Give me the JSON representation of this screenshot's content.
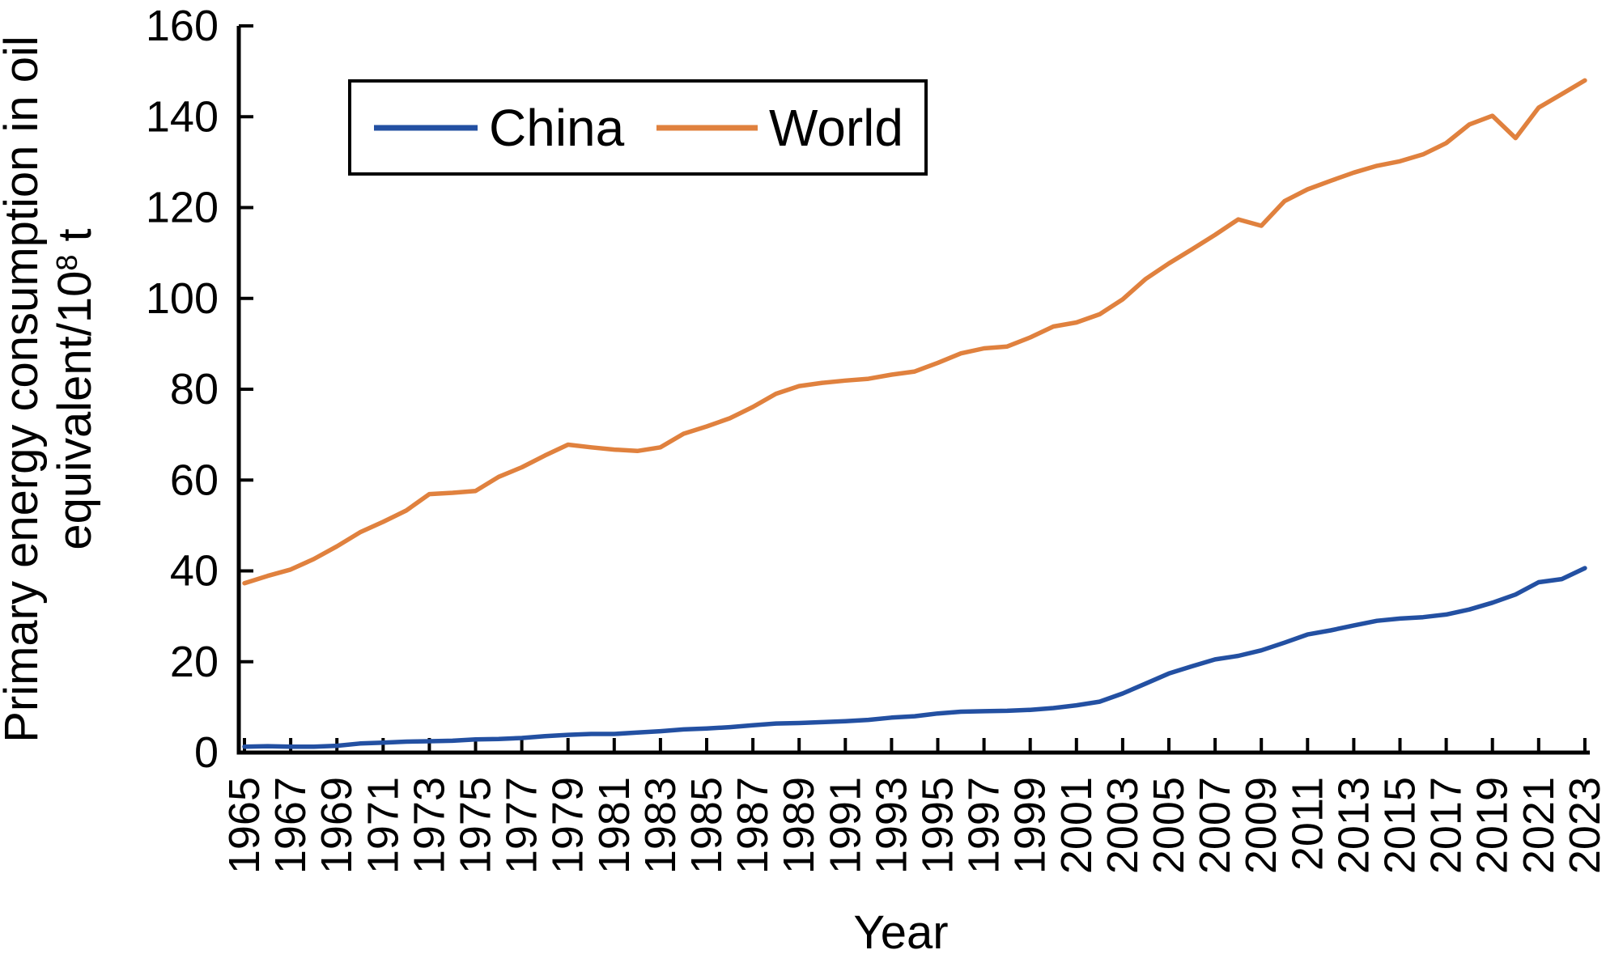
{
  "figure": {
    "background": "#ffffff",
    "text_color": "#000000"
  },
  "chart_data": {
    "type": "line",
    "title": "",
    "xlabel": "Year",
    "ylabel_plain": "Primary energy consumption in oil equivalent/10⁸ t",
    "ylabel": {
      "line1": "Primary energy consumption in oil",
      "line2_prefix": "equivalent/10",
      "line2_sup": "8",
      "line2_suffix": " t"
    },
    "ylim": [
      0,
      160
    ],
    "yticks": [
      0,
      20,
      40,
      60,
      80,
      100,
      120,
      140,
      160
    ],
    "xtick_every": 2,
    "xtick_labels": [
      "1965",
      "1967",
      "1969",
      "1971",
      "1973",
      "1975",
      "1977",
      "1979",
      "1981",
      "1983",
      "1985",
      "1987",
      "1989",
      "1991",
      "1993",
      "1995",
      "1997",
      "1999",
      "2001",
      "2003",
      "2005",
      "2007",
      "2009",
      "2011",
      "2013",
      "2015",
      "2017",
      "2019",
      "2021",
      "2023"
    ],
    "grid": false,
    "legend_position": "top-left",
    "x": [
      1965,
      1966,
      1967,
      1968,
      1969,
      1970,
      1971,
      1972,
      1973,
      1974,
      1975,
      1976,
      1977,
      1978,
      1979,
      1980,
      1981,
      1982,
      1983,
      1984,
      1985,
      1986,
      1987,
      1988,
      1989,
      1990,
      1991,
      1992,
      1993,
      1994,
      1995,
      1996,
      1997,
      1998,
      1999,
      2000,
      2001,
      2002,
      2003,
      2004,
      2005,
      2006,
      2007,
      2008,
      2009,
      2010,
      2011,
      2012,
      2013,
      2014,
      2015,
      2016,
      2017,
      2018,
      2019,
      2020,
      2021,
      2022,
      2023
    ],
    "series": [
      {
        "name": "China",
        "color": "#2350A2",
        "values": [
          1.3,
          1.4,
          1.3,
          1.3,
          1.5,
          2.0,
          2.2,
          2.4,
          2.5,
          2.6,
          2.9,
          3.0,
          3.2,
          3.6,
          3.9,
          4.1,
          4.1,
          4.4,
          4.7,
          5.1,
          5.3,
          5.6,
          6.0,
          6.4,
          6.5,
          6.7,
          6.9,
          7.2,
          7.7,
          8.0,
          8.6,
          9.0,
          9.1,
          9.2,
          9.4,
          9.8,
          10.4,
          11.2,
          13.0,
          15.2,
          17.4,
          19.0,
          20.5,
          21.3,
          22.5,
          24.2,
          26.0,
          26.9,
          28.0,
          29.0,
          29.5,
          29.8,
          30.4,
          31.5,
          33.0,
          34.8,
          37.5,
          38.2,
          40.6
        ]
      },
      {
        "name": "World",
        "color": "#E0813E",
        "values": [
          37.3,
          38.9,
          40.3,
          42.6,
          45.4,
          48.5,
          50.8,
          53.3,
          56.9,
          57.2,
          57.6,
          60.7,
          62.8,
          65.4,
          67.8,
          67.2,
          66.7,
          66.4,
          67.2,
          70.2,
          71.8,
          73.6,
          76.1,
          79.0,
          80.7,
          81.4,
          81.9,
          82.3,
          83.2,
          83.9,
          85.8,
          87.9,
          89.0,
          89.4,
          91.4,
          93.8,
          94.7,
          96.5,
          99.8,
          104.3,
          107.7,
          110.8,
          114.0,
          117.4,
          116.0,
          121.4,
          124.0,
          125.9,
          127.7,
          129.2,
          130.2,
          131.7,
          134.2,
          138.3,
          140.2,
          135.3,
          142.0,
          145.0,
          148.0
        ]
      }
    ]
  }
}
